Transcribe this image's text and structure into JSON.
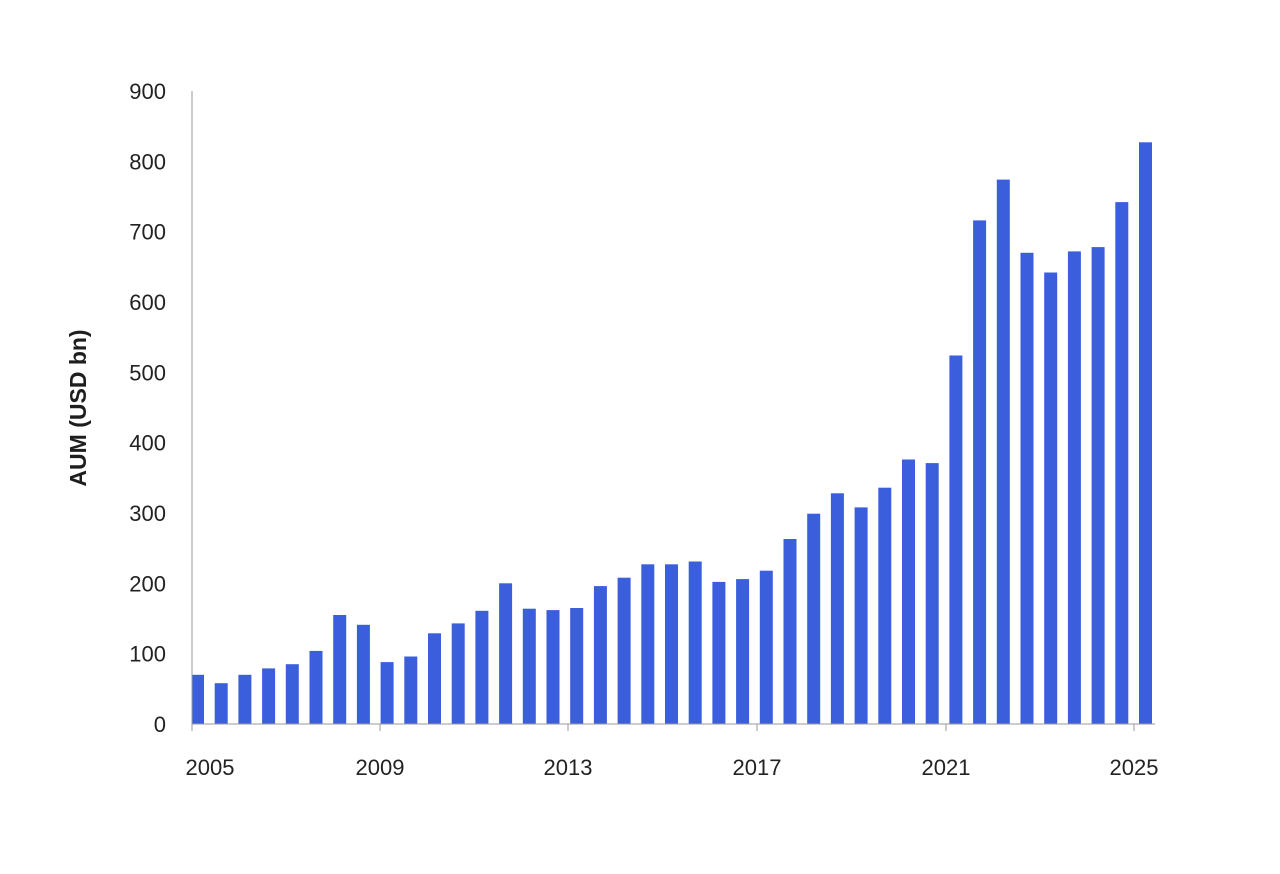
{
  "chart_data": {
    "type": "bar",
    "title": "",
    "xlabel": "",
    "ylabel": "AUM (USD bn)",
    "ylim": [
      0,
      900
    ],
    "yticks": [
      0,
      100,
      200,
      300,
      400,
      500,
      600,
      700,
      800,
      900
    ],
    "xticks": [
      "2005",
      "2009",
      "2013",
      "2017",
      "2021",
      "2025"
    ],
    "grid": false,
    "bar_color": "#3A5EDC",
    "series": [
      {
        "values": [
          70,
          58,
          70,
          79,
          85,
          104,
          155,
          141,
          88,
          96,
          129,
          143,
          161,
          200,
          164,
          162,
          165,
          196,
          208,
          227,
          227,
          231,
          202,
          206,
          218,
          263,
          299,
          328,
          308,
          336,
          376,
          371,
          524,
          716,
          774,
          670,
          642,
          672,
          678,
          742,
          827
        ]
      }
    ]
  }
}
